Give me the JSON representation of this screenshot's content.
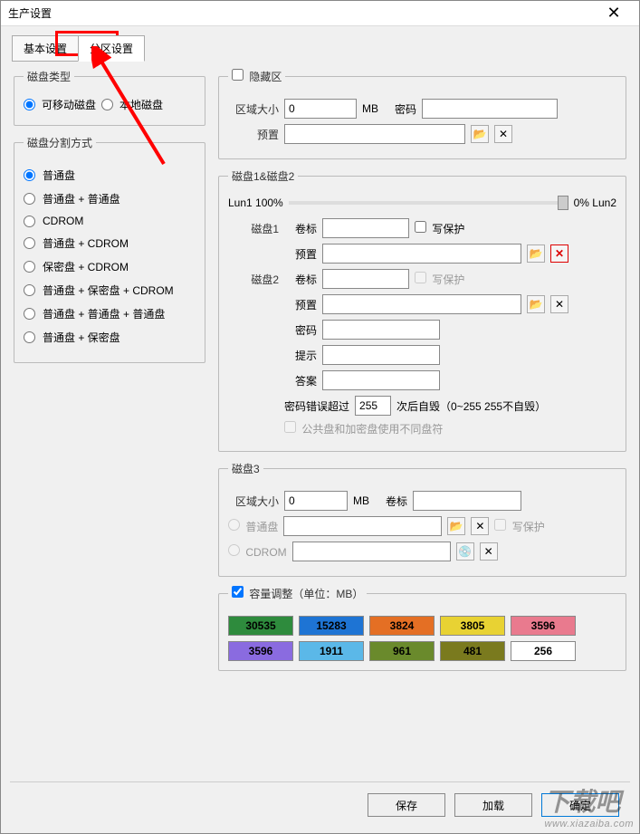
{
  "window": {
    "title": "生产设置"
  },
  "tabs": {
    "basic": "基本设置",
    "partition": "分区设置"
  },
  "diskType": {
    "legend": "磁盘类型",
    "removable": "可移动磁盘",
    "local": "本地磁盘",
    "selected": "removable"
  },
  "partitionMode": {
    "legend": "磁盘分割方式",
    "options": [
      "普通盘",
      "普通盘 + 普通盘",
      "CDROM",
      "普通盘 + CDROM",
      "保密盘 + CDROM",
      "普通盘 + 保密盘 + CDROM",
      "普通盘 + 普通盘 + 普通盘",
      "普通盘 + 保密盘"
    ]
  },
  "hidden": {
    "legend": "隐藏区",
    "sizeLabel": "区域大小",
    "sizeValue": "0",
    "unit": "MB",
    "pwdLabel": "密码",
    "presetLabel": "预置"
  },
  "disk12": {
    "legend": "磁盘1&磁盘2",
    "lun1": "Lun1 100%",
    "lun2": "0% Lun2",
    "disk1": "磁盘1",
    "disk2": "磁盘2",
    "volLabel": "卷标",
    "writeProtect": "写保护",
    "presetLabel": "预置",
    "pwdLabel": "密码",
    "hintLabel": "提示",
    "answerLabel": "答案",
    "pwdErrPrefix": "密码错误超过",
    "pwdErrVal": "255",
    "pwdErrSuffix": "次后自毁（0~255 255不自毁）",
    "diffDrive": "公共盘和加密盘使用不同盘符"
  },
  "disk3": {
    "legend": "磁盘3",
    "sizeLabel": "区域大小",
    "sizeValue": "0",
    "unit": "MB",
    "volLabel": "卷标",
    "normal": "普通盘",
    "cdrom": "CDROM",
    "writeProtect": "写保护"
  },
  "capacity": {
    "legend": "容量调整（单位：MB）",
    "cells": [
      {
        "v": "30535",
        "bg": "#2e8b3d",
        "fg": "#000"
      },
      {
        "v": "15283",
        "bg": "#1e74d4",
        "fg": "#000"
      },
      {
        "v": "3824",
        "bg": "#e46f24",
        "fg": "#000"
      },
      {
        "v": "3805",
        "bg": "#e8d233",
        "fg": "#000"
      },
      {
        "v": "3596",
        "bg": "#e97a8e",
        "fg": "#000"
      },
      {
        "v": "3596",
        "bg": "#8a6be0",
        "fg": "#000"
      },
      {
        "v": "1911",
        "bg": "#5bb8e8",
        "fg": "#000"
      },
      {
        "v": "961",
        "bg": "#6a8a2c",
        "fg": "#000"
      },
      {
        "v": "481",
        "bg": "#7a7a1e",
        "fg": "#000"
      },
      {
        "v": "256",
        "bg": "#ffffff",
        "fg": "#000"
      }
    ]
  },
  "buttons": {
    "save": "保存",
    "load": "加载",
    "ok": "确定"
  },
  "watermark": {
    "big": "下载吧",
    "small": "www.xiazaiba.com"
  }
}
